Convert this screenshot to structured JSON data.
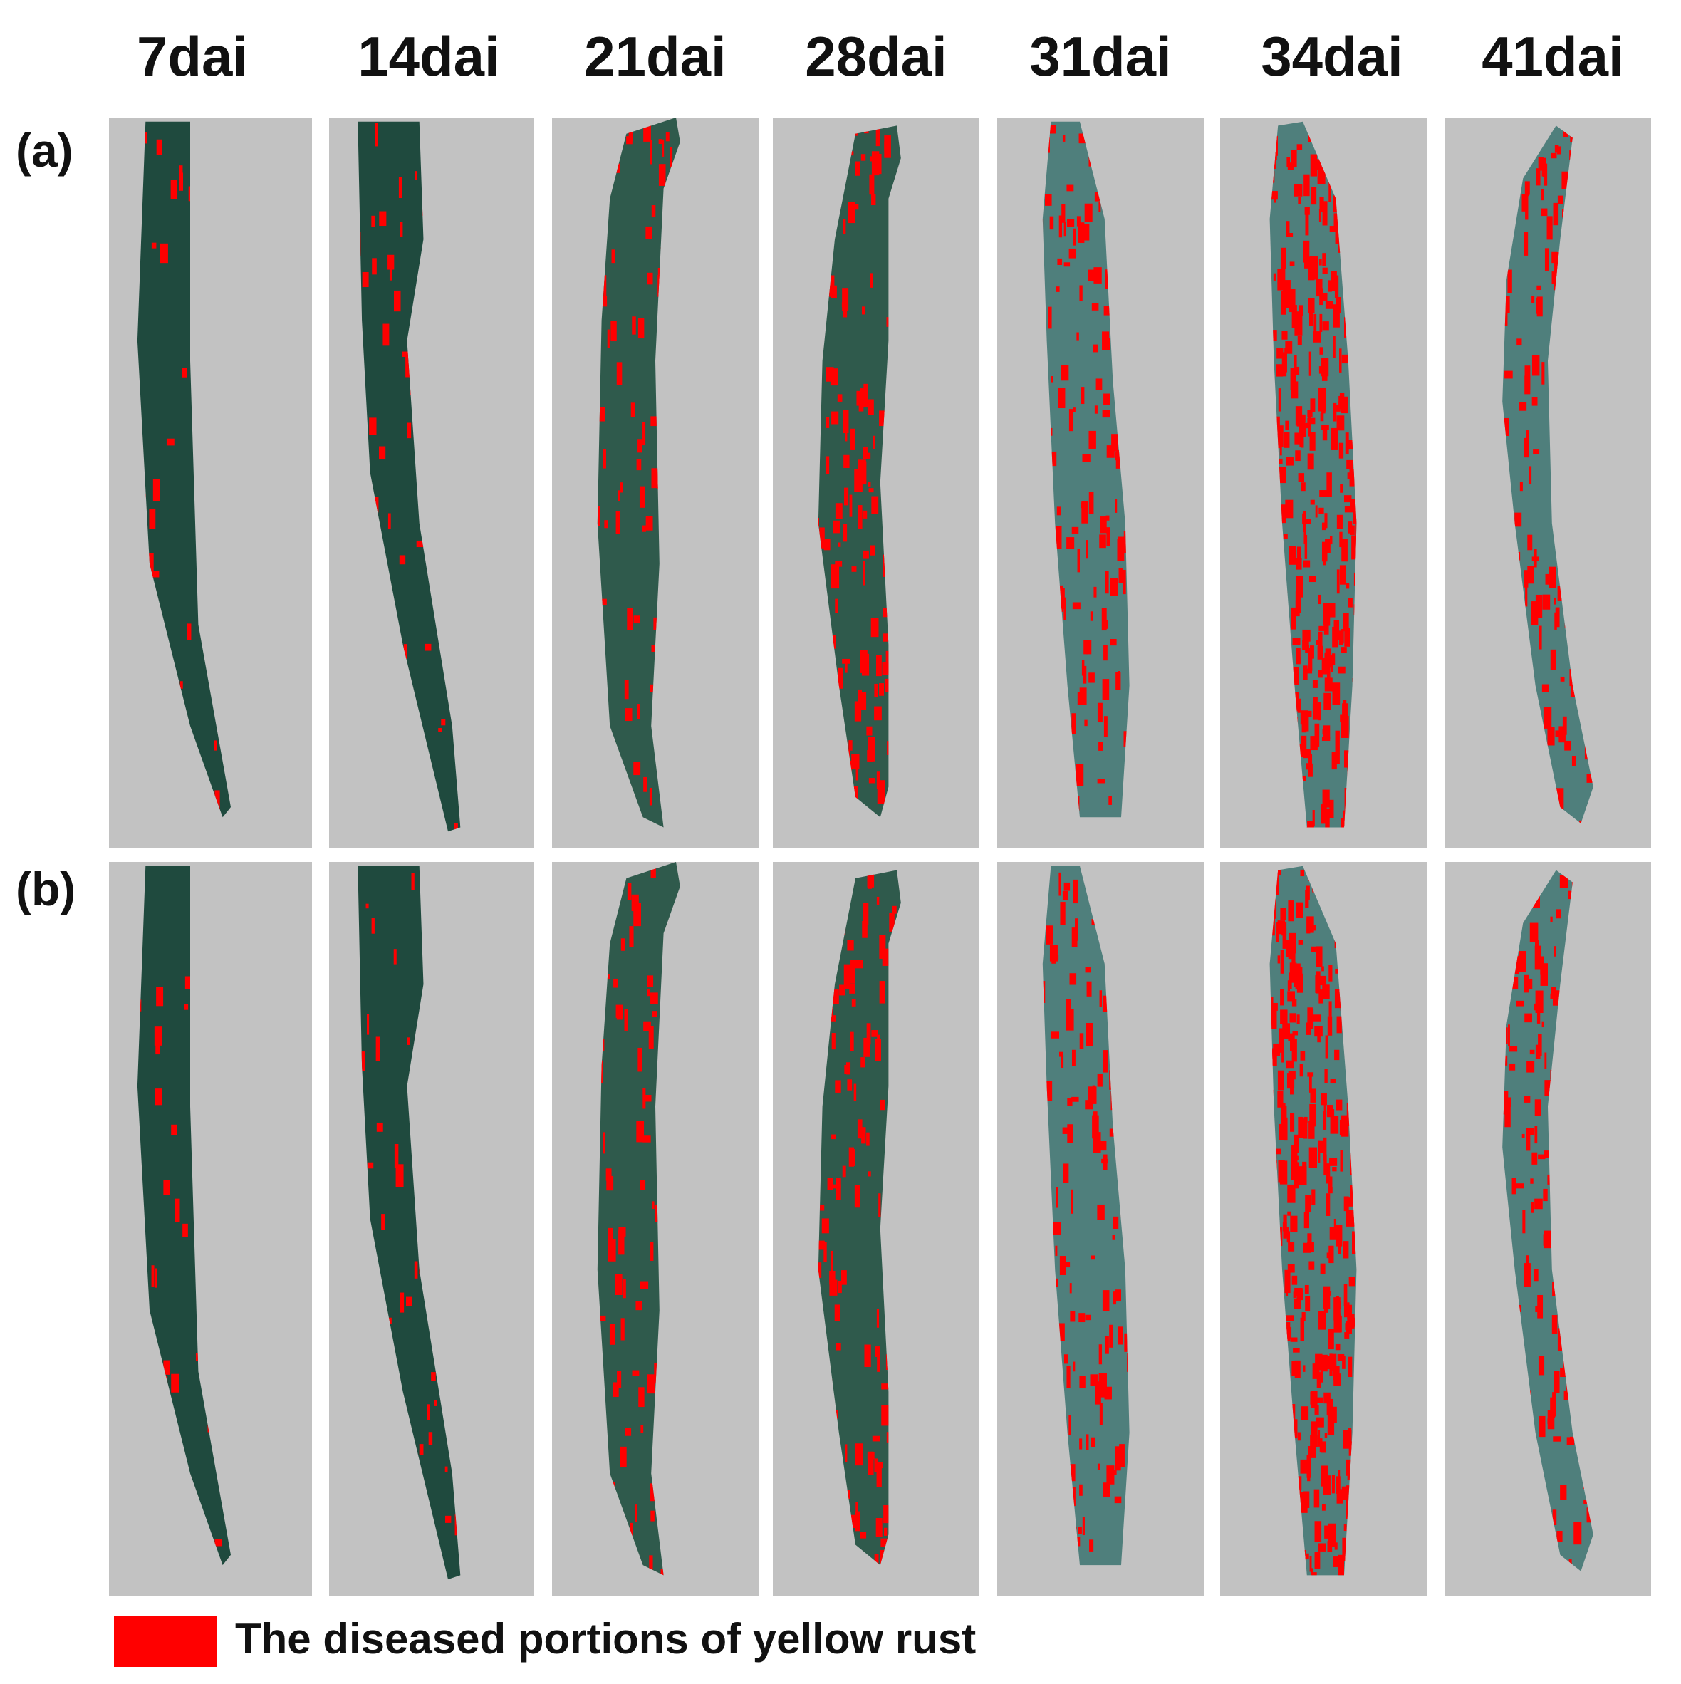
{
  "columns": [
    "7dai",
    "14dai",
    "21dai",
    "28dai",
    "31dai",
    "34dai",
    "41dai"
  ],
  "rows": [
    "(a)",
    "(b)"
  ],
  "legend": {
    "label": "The diseased portions of yellow rust",
    "color": "#ff0000"
  },
  "colors": {
    "background": "#c2c2c2",
    "disease": "#ff0000",
    "leaf_early": "#1f4a3e",
    "leaf_mid": "#2f5a4c",
    "leaf_late": "#4f7f7c"
  },
  "disease_level_by_column": [
    0.02,
    0.06,
    0.12,
    0.22,
    0.2,
    0.55,
    0.25
  ]
}
